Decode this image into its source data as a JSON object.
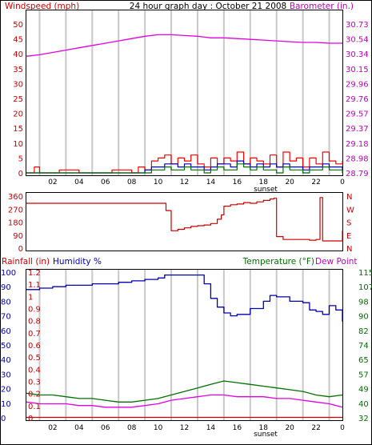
{
  "colors": {
    "wind": "#e00000",
    "gust": "#ff0000",
    "dir": "#cc0000",
    "avgwind": "#0000c0",
    "pressure": "#e000e0",
    "humidity": "#0000b0",
    "temp": "#007000",
    "dew": "#e000e0",
    "rain": "#cc0000",
    "grid": "#c8c8c8",
    "tick_red": "#cc0000",
    "tick_mag": "#c000c0",
    "tick_blue": "#0000b0",
    "tick_green": "#007000"
  },
  "chart_data": [
    {
      "type": "line",
      "title": "24 hour graph day : October 21 2008",
      "ylabel_left": "Windspeed (mph)",
      "ylabel_right": "Barometer (in.)",
      "x_ticks": [
        "02",
        "04",
        "06",
        "08",
        "10",
        "12",
        "14",
        "16",
        "18",
        "20",
        "22",
        "0"
      ],
      "annotation": "sunset",
      "ylim_left": [
        0,
        50
      ],
      "yticks_left": [
        "50",
        "45",
        "40",
        "35",
        "30",
        "25",
        "20",
        "15",
        "10",
        "5",
        "0"
      ],
      "ylim_right": [
        28.79,
        30.73
      ],
      "yticks_right": [
        "30.73",
        "30.54",
        "30.34",
        "30.15",
        "29.96",
        "29.76",
        "29.57",
        "29.37",
        "29.18",
        "28.98",
        "28.79"
      ],
      "grid": true,
      "series": [
        {
          "axis": "right",
          "x": [
            0,
            1,
            2,
            3,
            4,
            5,
            6,
            7,
            8,
            9,
            10,
            11,
            12,
            13,
            14,
            15,
            16,
            17,
            18,
            19,
            20,
            21,
            22,
            23,
            24
          ],
          "values": [
            30.31,
            30.33,
            30.36,
            30.39,
            30.42,
            30.45,
            30.48,
            30.51,
            30.54,
            30.57,
            30.59,
            30.59,
            30.58,
            30.57,
            30.55,
            30.55,
            30.54,
            30.53,
            30.52,
            30.51,
            30.5,
            30.49,
            30.49,
            30.48,
            30.48
          ]
        },
        {
          "axis": "left",
          "x": [
            0,
            0.5,
            0.6,
            1.0,
            2.0,
            2.5,
            3.0,
            4.0,
            5.0,
            6.0,
            6.5,
            7.0,
            7.5,
            8.0,
            8.5,
            9.0,
            9.5,
            10.0,
            10.5,
            11.0,
            11.5,
            12.0,
            12.5,
            13.0,
            13.5,
            14.0,
            14.5,
            15.0,
            15.5,
            16.0,
            16.5,
            17.0,
            17.5,
            18.0,
            18.5,
            19.0,
            19.5,
            20.0,
            20.5,
            21.0,
            21.5,
            22.0,
            22.5,
            23.0,
            23.5,
            24.0
          ],
          "values": [
            0,
            0,
            2,
            0,
            0,
            1,
            1,
            0,
            0,
            0,
            1,
            1,
            1,
            0,
            2,
            1,
            4,
            5,
            6,
            3,
            5,
            4,
            6,
            3,
            2,
            5,
            3,
            5,
            4,
            7,
            3,
            5,
            4,
            3,
            6,
            2,
            7,
            4,
            5,
            2,
            5,
            3,
            7,
            4,
            3,
            4
          ]
        },
        {
          "axis": "left",
          "x": [
            0,
            8.0,
            8.5,
            9.0,
            9.5,
            10.0,
            10.5,
            11.0,
            11.5,
            12.0,
            12.5,
            13.0,
            13.5,
            14.0,
            14.5,
            15.0,
            15.5,
            16.0,
            16.5,
            17.0,
            17.5,
            18.0,
            18.5,
            19.0,
            19.5,
            20.0,
            20.5,
            21.0,
            21.5,
            22.0,
            22.5,
            23.0,
            23.5,
            24.0
          ],
          "values": [
            0,
            0,
            0,
            1,
            2,
            2,
            3,
            3,
            2,
            3,
            2,
            2,
            1,
            2,
            3,
            3,
            2,
            4,
            3,
            2,
            3,
            2,
            3,
            2,
            3,
            2,
            2,
            1,
            2,
            2,
            3,
            2,
            2,
            1
          ]
        },
        {
          "axis": "left",
          "x": [
            0,
            9.0,
            9.5,
            10.0,
            10.5,
            11.0,
            11.5,
            12.0,
            12.5,
            13.0,
            13.5,
            14.0,
            14.5,
            15.0,
            15.5,
            16.0,
            16.5,
            17.0,
            17.5,
            18.0,
            18.5,
            19.0,
            19.5,
            20.0,
            20.5,
            21.0,
            21.5,
            22.0,
            22.5,
            23.0,
            23.5,
            24.0
          ],
          "values": [
            0,
            0,
            1,
            1,
            2,
            1,
            1,
            2,
            1,
            1,
            0,
            1,
            2,
            1,
            1,
            3,
            2,
            1,
            2,
            1,
            1,
            0,
            2,
            1,
            1,
            0,
            1,
            1,
            2,
            1,
            1,
            0
          ]
        }
      ]
    },
    {
      "type": "line",
      "ylabels_left": [
        "360",
        "270",
        "180",
        "90",
        "0"
      ],
      "ylim": [
        0,
        360
      ],
      "ylabels_right": [
        "N",
        "W",
        "S",
        "E",
        "N"
      ],
      "series": [
        {
          "x": [
            0,
            10.5,
            10.6,
            11.0,
            11.5,
            12.0,
            12.5,
            13.0,
            13.5,
            14.0,
            14.5,
            14.8,
            15.0,
            15.5,
            16.0,
            16.5,
            17.0,
            17.5,
            18.0,
            18.5,
            18.8,
            19.0,
            19.5,
            20.0,
            20.5,
            21.0,
            21.5,
            22.0,
            22.3,
            22.5,
            23.0,
            23.5,
            24.0
          ],
          "values": [
            310,
            310,
            260,
            120,
            130,
            140,
            150,
            155,
            160,
            170,
            200,
            230,
            290,
            300,
            305,
            315,
            310,
            320,
            330,
            340,
            345,
            80,
            60,
            60,
            60,
            60,
            55,
            60,
            350,
            50,
            50,
            50,
            120
          ]
        }
      ]
    },
    {
      "type": "line",
      "ylabel_left": "Rainfall (in)",
      "ylabel_left2": "Humidity %",
      "ylabel_right": "Temperature (°F)",
      "ylabel_right2": "Dew Point",
      "x_ticks": [
        "02",
        "04",
        "06",
        "08",
        "10",
        "12",
        "14",
        "16",
        "18",
        "20",
        "22",
        "0"
      ],
      "annotation": "sunset",
      "yticks_rain": [
        "1.2",
        "1.1",
        "1",
        "0.9",
        "0.8",
        "0.7",
        "0.6",
        "0.5",
        "0.4",
        "0.3",
        "0.2",
        "0.1",
        "0"
      ],
      "yticks_humidity": [
        "100",
        "90",
        "80",
        "70",
        "60",
        "50",
        "40",
        "30",
        "20",
        "10",
        "0"
      ],
      "ylim_humidity": [
        0,
        100
      ],
      "yticks_temp": [
        "115",
        "107",
        "98",
        "90",
        "82",
        "74",
        "65",
        "57",
        "49",
        "40",
        "32"
      ],
      "ylim_temp": [
        32,
        115
      ],
      "grid": true,
      "series": [
        {
          "axis": "humidity",
          "x": [
            0,
            1,
            2,
            3,
            4,
            5,
            6,
            7,
            8,
            9,
            10,
            10.5,
            11,
            12,
            13,
            13.5,
            14,
            14.5,
            15,
            15.5,
            16,
            17,
            18,
            18.5,
            19,
            20,
            21,
            21.5,
            22,
            22.5,
            23,
            23.5,
            24
          ],
          "values": [
            88,
            89,
            90,
            91,
            91,
            92,
            92,
            93,
            94,
            95,
            96,
            98,
            98,
            98,
            98,
            92,
            82,
            76,
            72,
            70,
            71,
            75,
            80,
            84,
            83,
            80,
            79,
            74,
            73,
            71,
            77,
            74,
            66
          ]
        },
        {
          "axis": "temp",
          "x": [
            0,
            1,
            2,
            3,
            4,
            5,
            6,
            7,
            8,
            9,
            10,
            11,
            12,
            13,
            14,
            15,
            16,
            17,
            18,
            19,
            20,
            21,
            22,
            23,
            24
          ],
          "values": [
            46,
            45,
            45,
            44,
            43,
            43,
            42,
            41,
            41,
            42,
            43,
            45,
            47,
            49,
            51,
            53,
            52,
            51,
            50,
            49,
            48,
            47,
            45,
            44,
            45
          ]
        },
        {
          "axis": "temp",
          "x": [
            0,
            1,
            2,
            3,
            4,
            5,
            6,
            7,
            8,
            9,
            10,
            11,
            12,
            13,
            14,
            15,
            16,
            17,
            18,
            19,
            20,
            21,
            22,
            23,
            24
          ],
          "values": [
            41,
            40,
            40,
            40,
            39,
            39,
            38,
            38,
            38,
            39,
            40,
            42,
            43,
            44,
            45,
            45,
            44,
            44,
            44,
            43,
            43,
            42,
            41,
            40,
            38
          ]
        },
        {
          "axis": "rain",
          "x": [
            0,
            24
          ],
          "values": [
            0,
            0
          ]
        }
      ]
    }
  ]
}
